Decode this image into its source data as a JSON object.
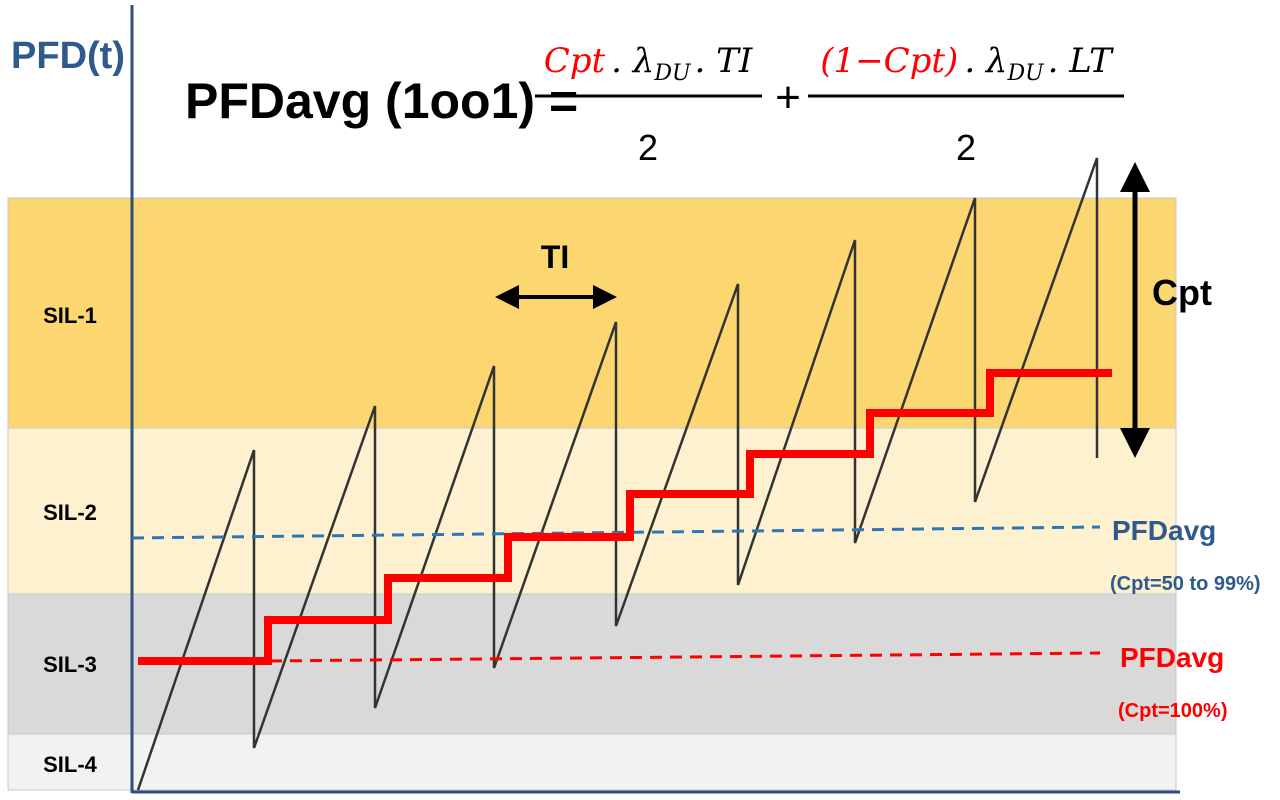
{
  "axis_label": "PFD(t)",
  "formula": {
    "lhs": "PFDavg (1oo1) =",
    "term1": {
      "red": "Cpt",
      "mid": ". λ",
      "sub": "DU",
      "end": ". TI",
      "den": "2"
    },
    "plus": "+",
    "term2": {
      "red": "(1−Cpt)",
      "mid": ". λ",
      "sub": "DU",
      "end": ". LT",
      "den": "2"
    }
  },
  "ti_label": "TI",
  "cpt_label": "Cpt",
  "bands": [
    "SIL-1",
    "SIL-2",
    "SIL-3",
    "SIL-4"
  ],
  "legend": {
    "blue": {
      "label": "PFDavg",
      "note": "(Cpt=50 to 99%)"
    },
    "red": {
      "label": "PFDavg",
      "note": "(Cpt=100%)"
    }
  }
}
